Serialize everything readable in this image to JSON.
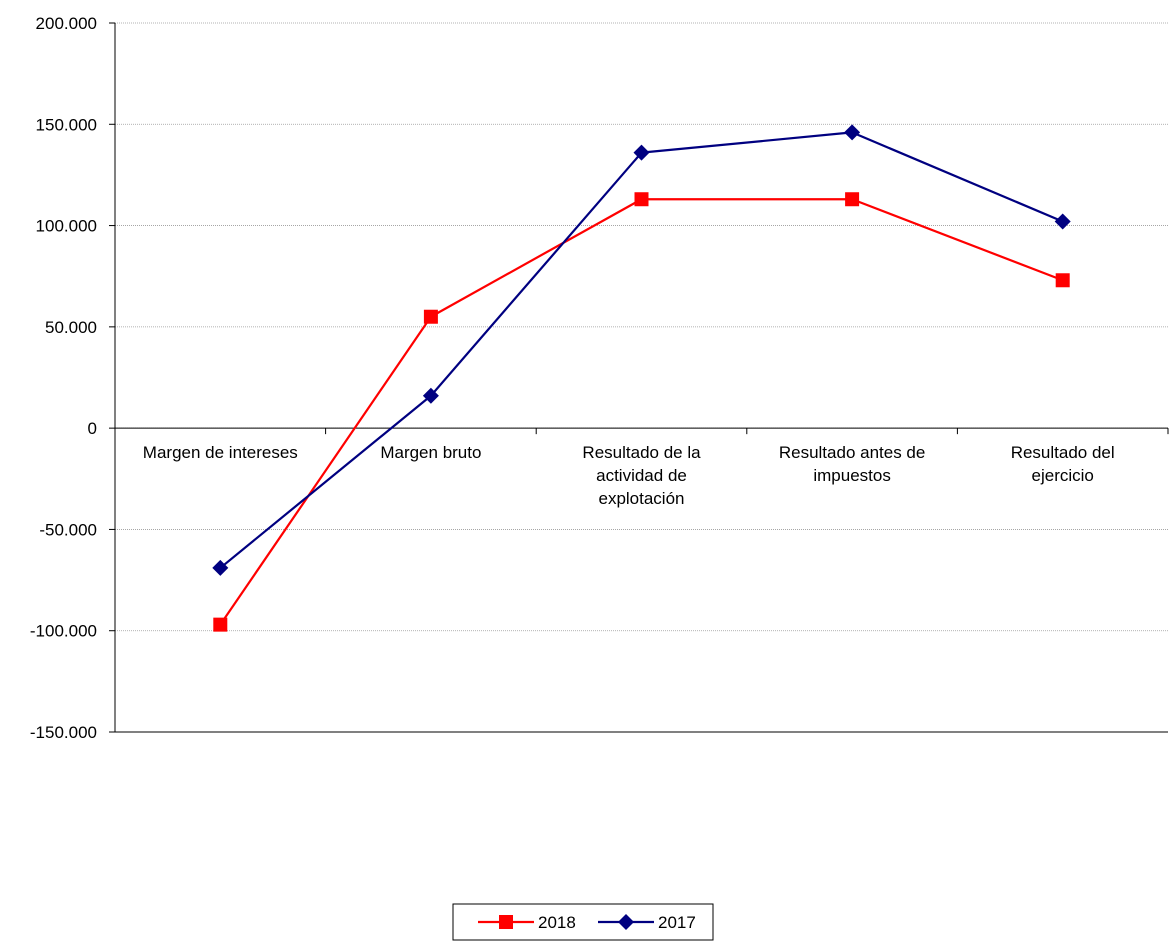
{
  "chart_data": {
    "type": "line",
    "title": "",
    "xlabel": "",
    "ylabel": "",
    "categories": [
      [
        "Margen de intereses"
      ],
      [
        "Margen bruto"
      ],
      [
        "Resultado de la",
        "actividad de",
        "explotación"
      ],
      [
        "Resultado antes de",
        "impuestos"
      ],
      [
        "Resultado del",
        "ejercicio"
      ]
    ],
    "ylim": [
      -150000,
      200000
    ],
    "ytick_step": 50000,
    "ytick_labels": [
      "-150.000",
      "-100.000",
      "-50.000",
      "0",
      "50.000",
      "100.000",
      "150.000",
      "200.000"
    ],
    "grid": true,
    "legend_position": "bottom-center",
    "series": [
      {
        "name": "2018",
        "color": "#ff0000",
        "marker": "square",
        "values": [
          -97000,
          55000,
          113000,
          113000,
          73000
        ]
      },
      {
        "name": "2017",
        "color": "#000080",
        "marker": "diamond",
        "values": [
          -69000,
          16000,
          136000,
          146000,
          102000
        ]
      }
    ]
  }
}
